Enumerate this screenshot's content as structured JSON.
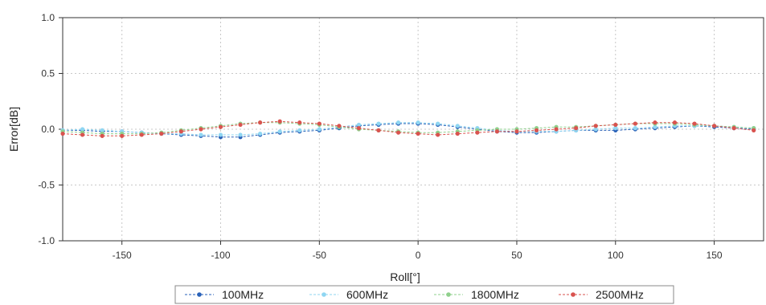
{
  "chart_data": {
    "type": "line",
    "xlabel": "Roll[°]",
    "ylabel": "Error[dB]",
    "xlim": [
      -180,
      175
    ],
    "ylim": [
      -1.0,
      1.0
    ],
    "x_ticks": [
      -150,
      -100,
      -50,
      0,
      50,
      100,
      150
    ],
    "y_ticks": [
      1.0,
      0.5,
      0.0,
      -0.5,
      -1.0
    ],
    "grid": true,
    "legend_position": "bottom",
    "x": [
      -180,
      -170,
      -160,
      -150,
      -140,
      -130,
      -120,
      -110,
      -100,
      -90,
      -80,
      -70,
      -60,
      -50,
      -40,
      -30,
      -20,
      -10,
      0,
      10,
      20,
      30,
      40,
      50,
      60,
      70,
      80,
      90,
      100,
      110,
      120,
      130,
      140,
      150,
      160,
      170
    ],
    "series": [
      {
        "name": "100MHz",
        "color": "#2a62b8",
        "values": [
          -0.01,
          -0.01,
          -0.02,
          -0.02,
          -0.03,
          -0.04,
          -0.05,
          -0.06,
          -0.07,
          -0.07,
          -0.05,
          -0.03,
          -0.02,
          -0.01,
          0.01,
          0.03,
          0.04,
          0.05,
          0.05,
          0.04,
          0.02,
          0.0,
          -0.02,
          -0.03,
          -0.03,
          -0.02,
          -0.01,
          -0.01,
          -0.01,
          0.0,
          0.01,
          0.02,
          0.03,
          0.02,
          0.01,
          0.0
        ]
      },
      {
        "name": "600MHz",
        "color": "#8fd6f2",
        "values": [
          -0.01,
          0.0,
          -0.01,
          -0.02,
          -0.03,
          -0.04,
          -0.04,
          -0.05,
          -0.05,
          -0.05,
          -0.04,
          -0.02,
          -0.01,
          0.0,
          0.02,
          0.04,
          0.05,
          0.06,
          0.06,
          0.05,
          0.03,
          0.01,
          -0.01,
          -0.02,
          -0.02,
          -0.02,
          -0.01,
          0.0,
          0.01,
          0.01,
          0.02,
          0.03,
          0.03,
          0.03,
          0.02,
          0.01
        ]
      },
      {
        "name": "1800MHz",
        "color": "#8fd08c",
        "values": [
          -0.02,
          -0.03,
          -0.04,
          -0.04,
          -0.04,
          -0.03,
          -0.01,
          0.01,
          0.03,
          0.05,
          0.06,
          0.06,
          0.05,
          0.04,
          0.02,
          0.0,
          -0.01,
          -0.02,
          -0.03,
          -0.03,
          -0.02,
          -0.01,
          0.0,
          0.0,
          0.01,
          0.02,
          0.02,
          0.03,
          0.04,
          0.05,
          0.05,
          0.05,
          0.04,
          0.03,
          0.02,
          0.01
        ]
      },
      {
        "name": "2500MHz",
        "color": "#d9534f",
        "values": [
          -0.04,
          -0.05,
          -0.06,
          -0.06,
          -0.05,
          -0.04,
          -0.02,
          0.0,
          0.02,
          0.04,
          0.06,
          0.07,
          0.06,
          0.05,
          0.03,
          0.01,
          -0.01,
          -0.03,
          -0.04,
          -0.05,
          -0.04,
          -0.03,
          -0.02,
          -0.02,
          -0.01,
          0.0,
          0.01,
          0.03,
          0.04,
          0.05,
          0.06,
          0.06,
          0.05,
          0.03,
          0.01,
          -0.01
        ]
      }
    ]
  }
}
